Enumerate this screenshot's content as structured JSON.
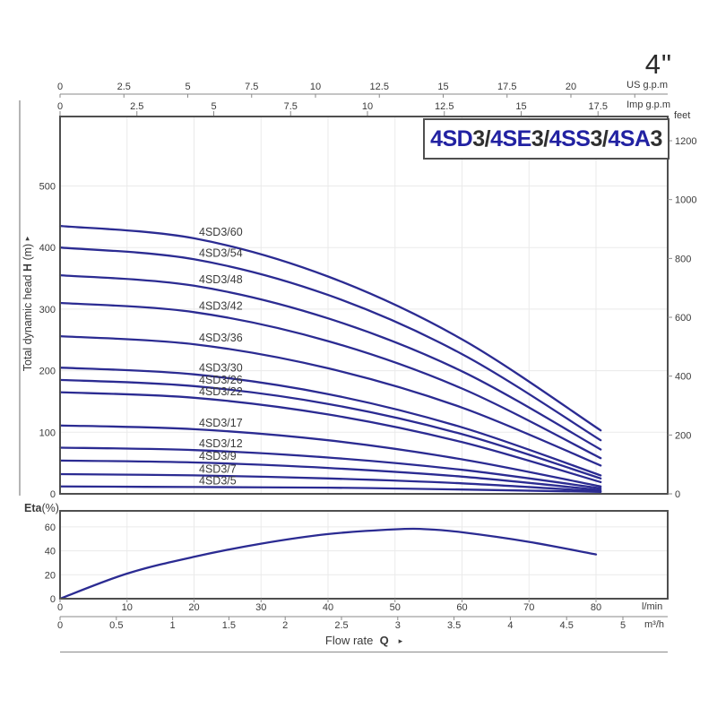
{
  "page": {
    "size_label": "4\"",
    "flow_rate_label": "Flow rate",
    "flow_rate_symbol": "Q",
    "flow_rate_arrow": "▸",
    "head_axis_prefix": "Total dynamic head",
    "head_axis_symbol": "H",
    "head_axis_unit": "(m)",
    "head_axis_arrow": "▸",
    "eta_label_bold": "Eta",
    "eta_label_unit": "(%)"
  },
  "title_box": {
    "text": "4SD3/4SE3/4SS3/4SA3",
    "segments": [
      {
        "text": "4SD",
        "color": "#2222a2"
      },
      {
        "text": "3/",
        "color": "#2f2f2f"
      },
      {
        "text": "4SE",
        "color": "#2222a2"
      },
      {
        "text": "3/",
        "color": "#2f2f2f"
      },
      {
        "text": "4SS",
        "color": "#2222a2"
      },
      {
        "text": "3/",
        "color": "#2f2f2f"
      },
      {
        "text": "4SA",
        "color": "#2222a2"
      },
      {
        "text": "3",
        "color": "#2f2f2f"
      }
    ]
  },
  "colors": {
    "curve": "#2b2b92",
    "grid": "#eaeaea",
    "border": "#4f4f4f",
    "axis": "#8a8a8a",
    "text": "#3a3a3a"
  },
  "chart_data": [
    {
      "type": "line",
      "title": "4SD3/4SE3/4SS3/4SA3",
      "xlabel": "Flow rate Q",
      "ylabel": "Total dynamic head H (m)",
      "y2label": "feet",
      "grid": true,
      "x_axes": [
        {
          "unit": "US g.p.m",
          "tick_labels": [
            "0",
            "2.5",
            "5",
            "7.5",
            "10",
            "12.5",
            "15",
            "17.5",
            "20"
          ],
          "tick_step": 2.5,
          "extra_unlabeled_tick": 22.5
        },
        {
          "unit": "Imp g.p.m",
          "tick_labels": [
            "0",
            "2.5",
            "5",
            "7.5",
            "10",
            "12.5",
            "15",
            "17.5"
          ],
          "tick_step": 2.5
        },
        {
          "unit": "l/min",
          "tick_labels": [
            "0",
            "10",
            "20",
            "30",
            "40",
            "50",
            "60",
            "70",
            "80"
          ],
          "tick_step": 10
        },
        {
          "unit": "m³/h",
          "tick_labels": [
            "0",
            "0.5",
            "1",
            "1.5",
            "2",
            "2.5",
            "3",
            "3.5",
            "4",
            "4.5",
            "5"
          ],
          "tick_step": 0.5
        }
      ],
      "y_axes": [
        {
          "unit": "m",
          "tick_labels": [
            "0",
            "100",
            "200",
            "300",
            "400",
            "500"
          ],
          "tick_step": 100
        },
        {
          "unit": "feet",
          "tick_labels": [
            "0",
            "200",
            "400",
            "600",
            "800",
            "1000",
            "1200"
          ],
          "tick_step": 200
        }
      ],
      "flow_lmin": [
        0,
        20,
        40,
        60,
        80.7
      ],
      "series": [
        {
          "name": "4SD3/60",
          "heads_m": [
            435,
            415,
            353,
            251,
            103
          ]
        },
        {
          "name": "4SD3/54",
          "heads_m": [
            400,
            381,
            323,
            227,
            87
          ]
        },
        {
          "name": "4SD3/48",
          "heads_m": [
            355,
            338,
            285,
            199,
            72
          ]
        },
        {
          "name": "4SD3/42",
          "heads_m": [
            310,
            295,
            248,
            171,
            58
          ]
        },
        {
          "name": "4SD3/36",
          "heads_m": [
            256,
            243,
            204,
            140,
            46
          ]
        },
        {
          "name": "4SD3/30",
          "heads_m": [
            205,
            194,
            162,
            108,
            30
          ]
        },
        {
          "name": "4SD3/26",
          "heads_m": [
            185,
            175,
            146,
            97,
            25
          ]
        },
        {
          "name": "4SD3/22",
          "heads_m": [
            165,
            156,
            129,
            84,
            19
          ]
        },
        {
          "name": "4SD3/17",
          "heads_m": [
            111,
            105,
            87,
            56,
            12
          ]
        },
        {
          "name": "4SD3/12",
          "heads_m": [
            75,
            71,
            59,
            39,
            9
          ]
        },
        {
          "name": "4SD3/9",
          "heads_m": [
            54,
            51,
            42,
            28,
            6
          ]
        },
        {
          "name": "4SD3/7",
          "heads_m": [
            32,
            30,
            25,
            17,
            4
          ]
        },
        {
          "name": "4SD3/5",
          "heads_m": [
            12,
            11,
            10,
            7,
            3
          ]
        }
      ]
    },
    {
      "type": "line",
      "ylabel": "Eta(%)",
      "xlabel": "l/min",
      "ylim": [
        0,
        65
      ],
      "ytick_labels": [
        "0",
        "20",
        "40",
        "60"
      ],
      "ytick_step": 20,
      "grid": true,
      "points_lmin_pct": [
        [
          0,
          0
        ],
        [
          10,
          21
        ],
        [
          20,
          35
        ],
        [
          30,
          46
        ],
        [
          40,
          54
        ],
        [
          50,
          58
        ],
        [
          55,
          58
        ],
        [
          60,
          55.5
        ],
        [
          70,
          47.5
        ],
        [
          80,
          37
        ]
      ]
    }
  ]
}
